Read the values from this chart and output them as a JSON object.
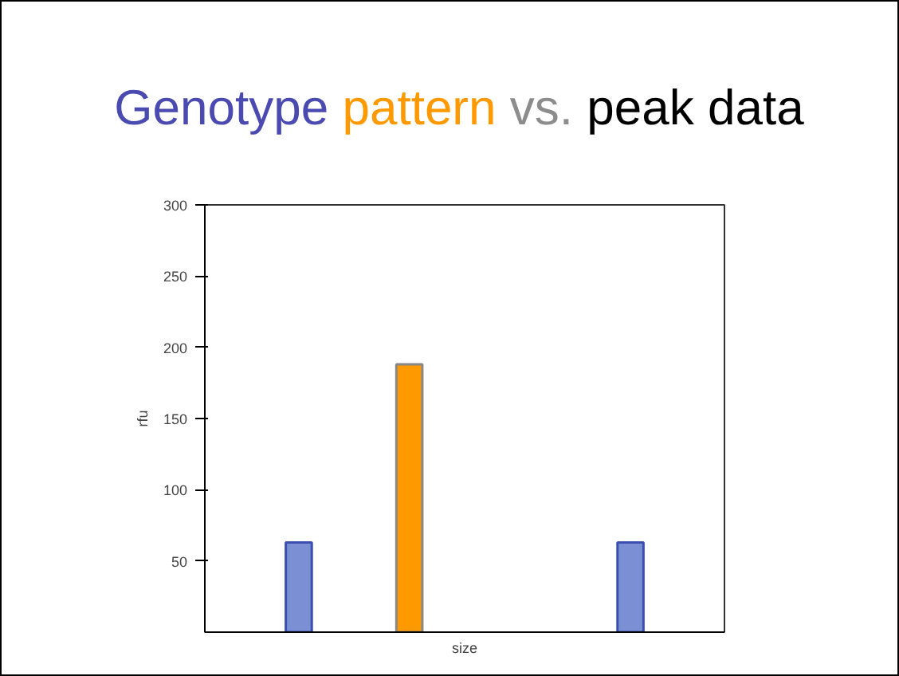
{
  "chart_data": {
    "type": "bar",
    "title": "Genotype pattern vs. peak data",
    "categories": [
      null,
      null,
      null,
      null,
      null,
      null,
      null,
      null,
      null
    ],
    "values": [
      null,
      63,
      null,
      188,
      null,
      null,
      null,
      63,
      null
    ],
    "colors": [
      "#7b8fd4",
      "#7b8fd4",
      "#7b8fd4",
      "#ff9900",
      "#7b8fd4",
      "#7b8fd4",
      "#7b8fd4",
      "#7b8fd4",
      "#7b8fd4"
    ],
    "xlabel": "size",
    "ylabel": "rfu",
    "ylim": [
      0,
      300
    ],
    "yticks": [
      50,
      100,
      150,
      200,
      250,
      300
    ],
    "grid": false,
    "tick_labels": "y"
  }
}
